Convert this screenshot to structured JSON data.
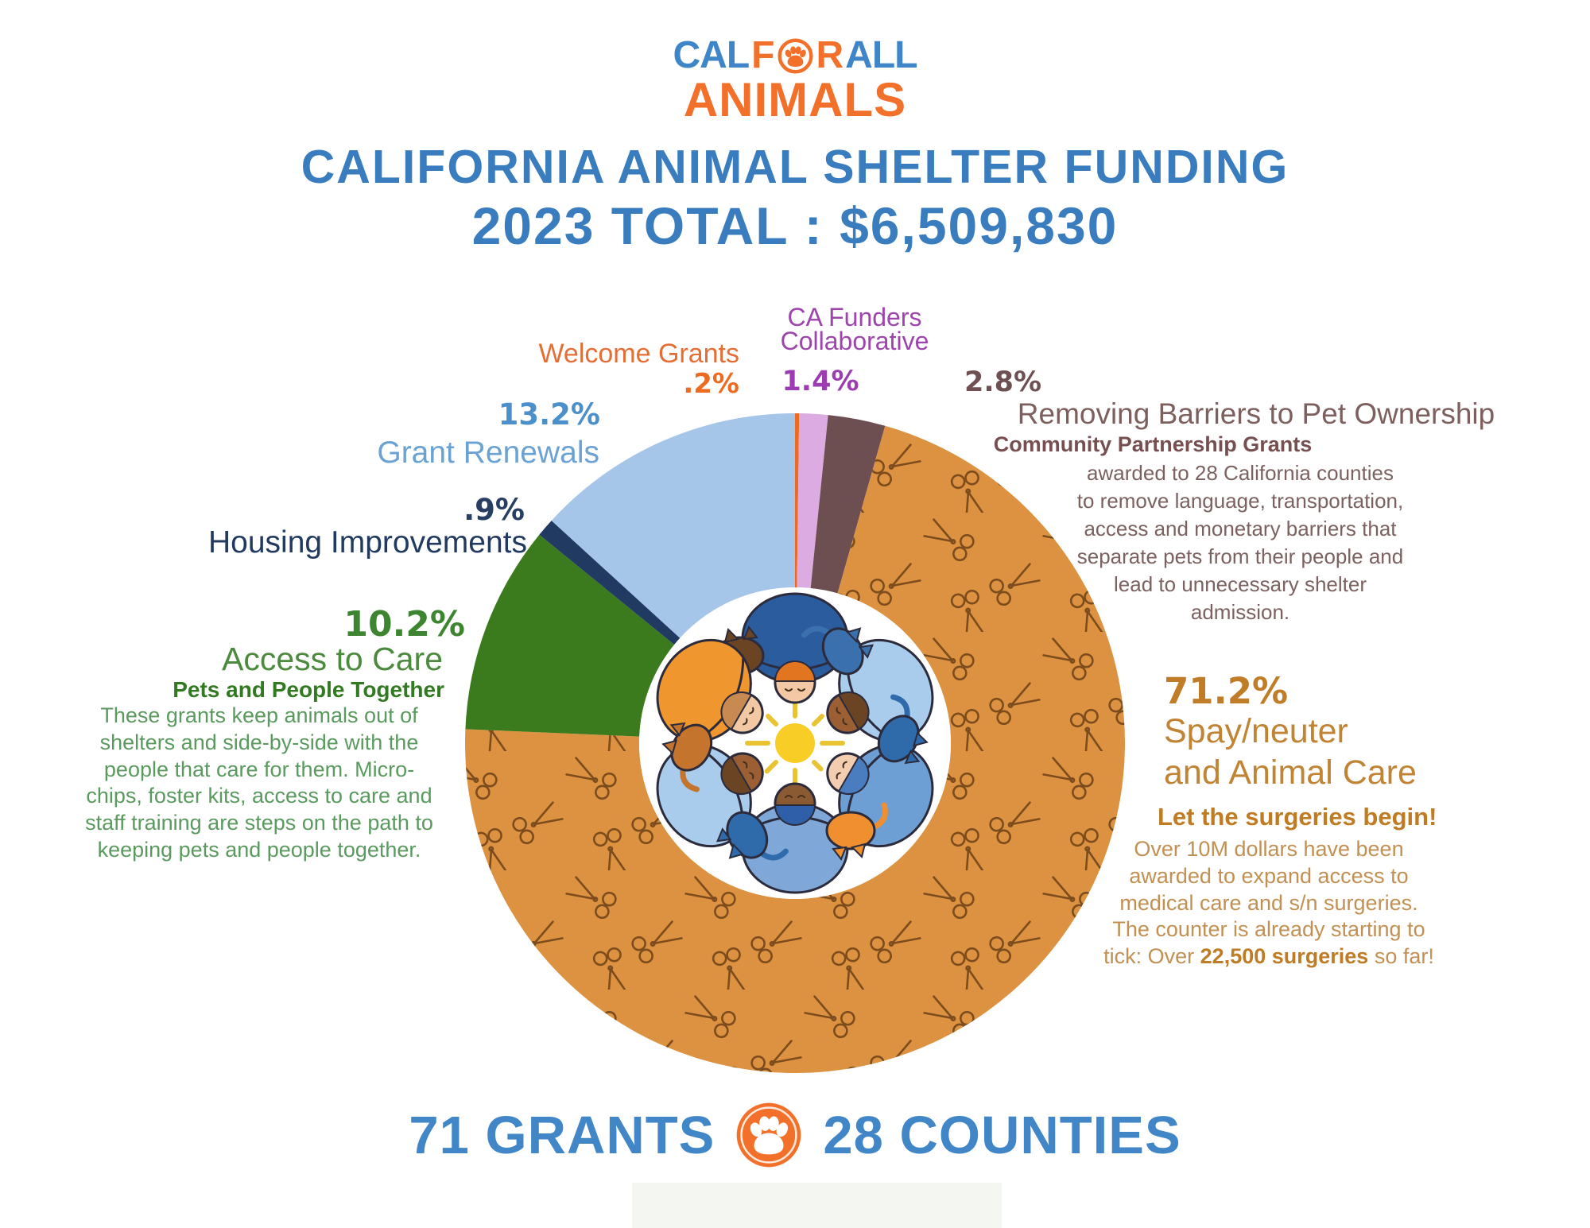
{
  "logo": {
    "cal": "CAL",
    "for_f": "F",
    "for_r": "R",
    "all": "ALL",
    "animals": "ANIMALS",
    "paw_icon": "paw-in-circle",
    "blue": "#3f86c8",
    "orange": "#f2702a"
  },
  "header": {
    "title": "CALIFORNIA ANIMAL SHELTER FUNDING",
    "total_line": "2023 TOTAL : $6,509,830"
  },
  "chart_data": {
    "type": "pie",
    "subtype": "donut",
    "title": "California Animal Shelter Funding 2023",
    "total_label": "2023 TOTAL : $6,509,830",
    "start_angle_deg": 0,
    "direction": "clockwise",
    "inner_radius_ratio": 0.47,
    "segments": [
      {
        "label": "Welcome Grants",
        "pct_label": ".2%",
        "value": 0.2,
        "color": "#ee6a21"
      },
      {
        "label": "CA Funders Collaborative",
        "pct_label": "1.4%",
        "value": 1.4,
        "color": "#dcabe2"
      },
      {
        "label": "Removing Barriers to Pet Ownership",
        "pct_label": "2.8%",
        "value": 2.8,
        "color": "#6e4f51"
      },
      {
        "label": "Spay/neuter and Animal Care",
        "pct_label": "71.2%",
        "value": 71.2,
        "color": "#dc9240",
        "pattern": "scissors"
      },
      {
        "label": "Access to Care",
        "pct_label": "10.2%",
        "value": 10.2,
        "color": "#3b7b1e"
      },
      {
        "label": "Housing Improvements",
        "pct_label": ".9%",
        "value": 0.9,
        "color": "#213a62"
      },
      {
        "label": "Grant Renewals",
        "pct_label": "13.2%",
        "value": 13.2,
        "color": "#a5c6e9"
      }
    ]
  },
  "callouts": {
    "welcome": {
      "label": "Welcome Grants",
      "pct": ".2%"
    },
    "ca_funders": {
      "label": "CA Funders\nCollaborative",
      "pct": "1.4%"
    },
    "renewals": {
      "pct": "13.2%",
      "label": "Grant Renewals"
    },
    "housing": {
      "pct": ".9%",
      "label": "Housing Improvements"
    },
    "access": {
      "pct": "10.2%",
      "label": "Access to Care",
      "sub": "Pets and People Together",
      "body": "These grants keep animals out of\nshelters and side-by-side with the\npeople that care for them.  Micro-\nchips, foster kits, access to care and\nstaff training are steps on the path to\nkeeping pets and people together."
    },
    "removing": {
      "pct": "2.8%",
      "label": "Removing Barriers to Pet Ownership",
      "sub": "Community Partnership Grants",
      "body": "awarded to 28 California counties\nto remove language, transportation,\naccess and monetary barriers that\nseparate pets from their people and\nlead to unnecessary shelter\nadmission."
    },
    "spay": {
      "pct": "71.2%",
      "line1": "Spay/neuter",
      "line2": "and Animal Care",
      "sub": "Let the surgeries begin!",
      "body_pre": "Over 10M dollars have been\nawarded to expand access to\nmedical care and s/n surgeries.\nThe counter is already starting to\ntick: Over ",
      "body_bold": "22,500 surgeries",
      "body_post": " so far!"
    }
  },
  "footer": {
    "grants": "71 GRANTS",
    "counties": "28 COUNTIES",
    "paw_icon": "paw-print",
    "text_color": "#4186c6",
    "badge_color": "#f2702a"
  },
  "center_illustration": {
    "description": "six people seen from above hugging pets in a circle around a sun",
    "sun_core": "#f8cd26",
    "sun_rays": "#e8c332",
    "outline": "#2b2b3c",
    "people": [
      {
        "body": "#2b5c9e",
        "skin": "#f2c9a4",
        "hair": "#e2751f",
        "pet": "#6b4423"
      },
      {
        "body": "#a9cbec",
        "skin": "#9c5f33",
        "hair": "#6b4423",
        "pet": "#3a70ad"
      },
      {
        "body": "#6d9fd4",
        "skin": "#f2cdb0",
        "hair": "#4a7dc0",
        "pet": "#2f6bab"
      },
      {
        "body": "#7fa8d8",
        "skin": "#8a5a33",
        "hair": "#2f5fa8",
        "pet": "#ef8f2f"
      },
      {
        "body": "#a9cbec",
        "skin": "#9c5f33",
        "hair": "#6b4423",
        "pet": "#2f6bab"
      },
      {
        "body": "#f0962e",
        "skin": "#f2c9a4",
        "hair": "#c98a52",
        "pet": "#c4742c"
      }
    ]
  }
}
